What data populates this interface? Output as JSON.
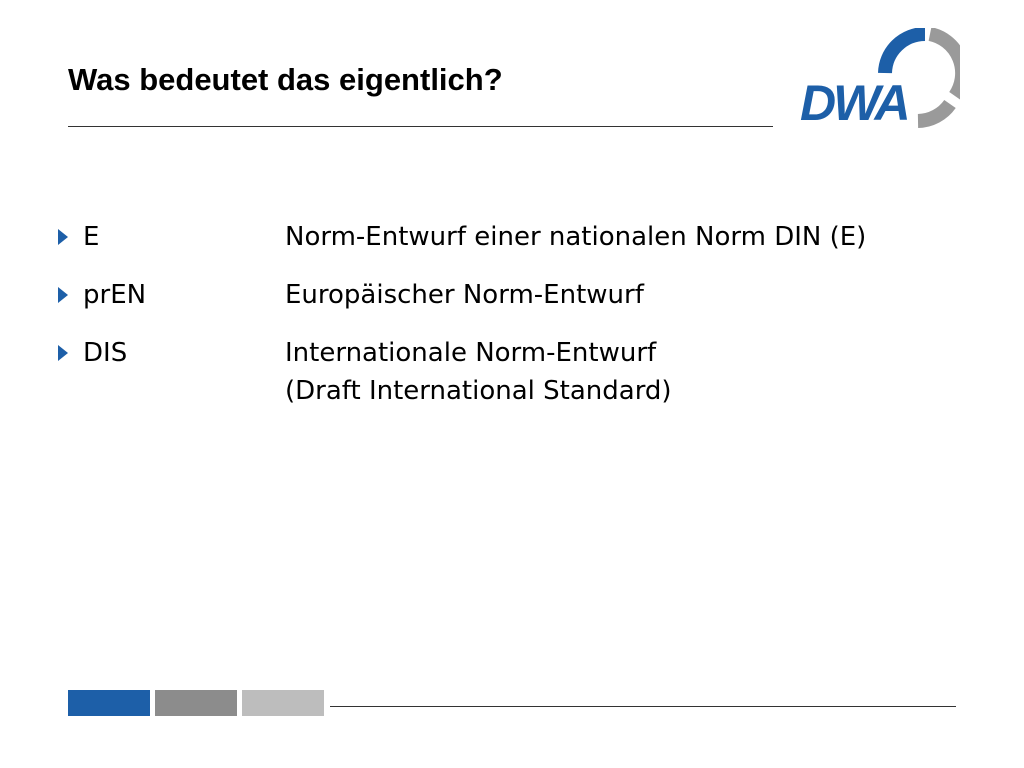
{
  "slide": {
    "title": "Was bedeutet das eigentlich?",
    "logo_text": "DWA",
    "items": [
      {
        "abbr": "E",
        "desc": "Norm-Entwurf einer nationalen Norm DIN (E)"
      },
      {
        "abbr": "prEN",
        "desc": "Europäischer Norm-Entwurf"
      },
      {
        "abbr": "DIS",
        "desc": "Internationale Norm-Entwurf",
        "desc2": "(Draft International Standard)"
      }
    ]
  },
  "colors": {
    "accent_blue": "#1d5fa8",
    "grey_dark": "#8c8c8c",
    "grey_light": "#bdbdbd"
  },
  "icons": {
    "bullet": "triangle-right-icon"
  }
}
